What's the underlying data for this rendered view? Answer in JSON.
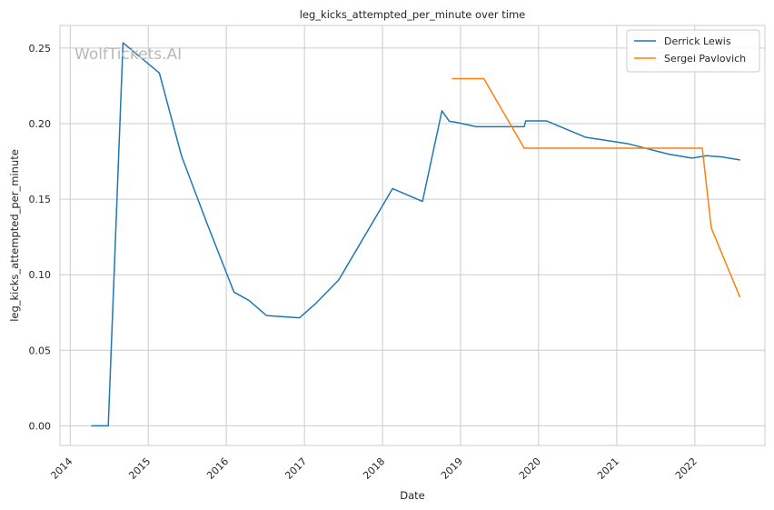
{
  "watermark": "WolfTickets.AI",
  "chart_data": {
    "type": "line",
    "title": "leg_kicks_attempted_per_minute over time",
    "xlabel": "Date",
    "ylabel": "leg_kicks_attempted_per_minute",
    "xlim": [
      "2013-11-14",
      "2022-11-25"
    ],
    "ylim": [
      -0.013,
      0.265
    ],
    "x_ticks": [
      "2014",
      "2015",
      "2016",
      "2017",
      "2018",
      "2019",
      "2020",
      "2021",
      "2022"
    ],
    "y_ticks": [
      "0.00",
      "0.05",
      "0.10",
      "0.15",
      "0.20",
      "0.25"
    ],
    "grid": true,
    "legend_position": "top-right",
    "colors": {
      "axes_edge": "#cccccc",
      "grid": "#cccccc"
    },
    "series": [
      {
        "name": "Derrick Lewis",
        "color": "#1f77b4",
        "points": [
          [
            "2014-04-12",
            0.0
          ],
          [
            "2014-06-28",
            0.0
          ],
          [
            "2014-09-05",
            0.2535
          ],
          [
            "2015-02-22",
            0.2335
          ],
          [
            "2015-06-06",
            0.1785
          ],
          [
            "2015-10-03",
            0.134
          ],
          [
            "2016-02-06",
            0.0885
          ],
          [
            "2016-04-16",
            0.083
          ],
          [
            "2016-07-07",
            0.073
          ],
          [
            "2016-12-09",
            0.0715
          ],
          [
            "2017-02-19",
            0.0805
          ],
          [
            "2017-06-10",
            0.0965
          ],
          [
            "2018-02-17",
            0.157
          ],
          [
            "2018-07-07",
            0.1485
          ],
          [
            "2018-10-06",
            0.2085
          ],
          [
            "2018-11-10",
            0.2015
          ],
          [
            "2018-12-08",
            0.201
          ],
          [
            "2019-03-16",
            0.198
          ],
          [
            "2019-10-26",
            0.198
          ],
          [
            "2019-11-02",
            0.2018
          ],
          [
            "2020-02-08",
            0.2018
          ],
          [
            "2020-08-08",
            0.191
          ],
          [
            "2021-02-20",
            0.1868
          ],
          [
            "2021-09-01",
            0.1798
          ],
          [
            "2021-12-18",
            0.1772
          ],
          [
            "2022-02-26",
            0.1788
          ],
          [
            "2022-05-07",
            0.178
          ],
          [
            "2022-07-30",
            0.176
          ]
        ]
      },
      {
        "name": "Sergei Pavlovich",
        "color": "#ff7f0e",
        "points": [
          [
            "2018-11-24",
            0.2298
          ],
          [
            "2019-04-20",
            0.2298
          ],
          [
            "2019-10-26",
            0.1838
          ],
          [
            "2022-02-05",
            0.1838
          ],
          [
            "2022-03-19",
            0.131
          ],
          [
            "2022-07-30",
            0.0855
          ]
        ]
      }
    ]
  }
}
